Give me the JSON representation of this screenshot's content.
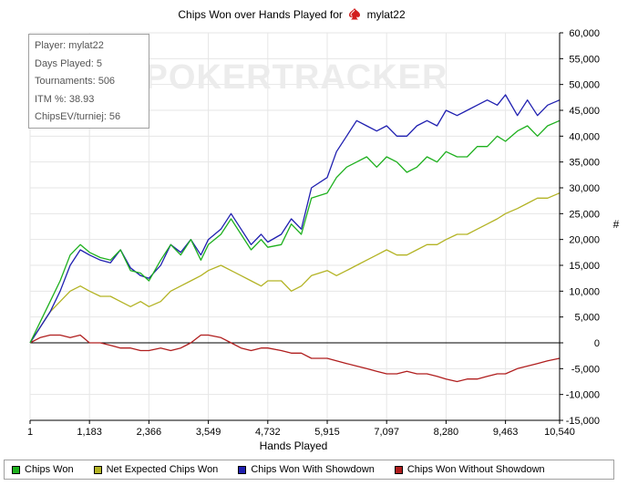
{
  "chart_data": {
    "type": "line",
    "title": "Chips Won over Hands Played for",
    "player_name": "mylat22",
    "xlabel": "Hands Played",
    "ylabel": "#",
    "xlim": [
      1,
      10540
    ],
    "ylim": [
      -15000,
      60000
    ],
    "x_ticks": [
      "1",
      "1,183",
      "2,366",
      "3,549",
      "4,732",
      "5,915",
      "7,097",
      "8,280",
      "9,463",
      "10,540"
    ],
    "y_ticks": [
      "60,000",
      "55,000",
      "50,000",
      "45,000",
      "40,000",
      "35,000",
      "30,000",
      "25,000",
      "20,000",
      "15,000",
      "10,000",
      "5,000",
      "0",
      "-5,000",
      "-10,000",
      "-15,000"
    ],
    "watermark": "POKERTRACKER",
    "grid": true,
    "legend_position": "bottom",
    "info_box": [
      "Player: mylat22",
      "Days Played: 5",
      "Tournaments: 506",
      "ITM %: 38.93",
      "ChipsEV/turniej: 56"
    ],
    "series": [
      {
        "name": "Chips Won",
        "color": "#1eb01e",
        "x": [
          1,
          200,
          400,
          600,
          800,
          1000,
          1183,
          1400,
          1600,
          1800,
          2000,
          2200,
          2366,
          2600,
          2800,
          3000,
          3200,
          3400,
          3549,
          3800,
          4000,
          4200,
          4400,
          4600,
          4732,
          5000,
          5200,
          5400,
          5600,
          5915,
          6100,
          6300,
          6500,
          6700,
          6900,
          7097,
          7300,
          7500,
          7700,
          7900,
          8100,
          8280,
          8500,
          8700,
          8900,
          9100,
          9300,
          9463,
          9700,
          9900,
          10100,
          10300,
          10540
        ],
        "values": [
          0,
          4000,
          8000,
          12000,
          17000,
          19000,
          17500,
          16500,
          16000,
          18000,
          14000,
          13500,
          12000,
          16000,
          19000,
          17000,
          20000,
          16000,
          19000,
          21000,
          24000,
          21000,
          18000,
          20000,
          18500,
          19000,
          23000,
          21000,
          28000,
          29000,
          32000,
          34000,
          35000,
          36000,
          34000,
          36000,
          35000,
          33000,
          34000,
          36000,
          35000,
          37000,
          36000,
          36000,
          38000,
          38000,
          40000,
          39000,
          41000,
          42000,
          40000,
          42000,
          43000
        ]
      },
      {
        "name": "Net Expected Chips Won",
        "color": "#b3b324",
        "x": [
          1,
          200,
          400,
          600,
          800,
          1000,
          1183,
          1400,
          1600,
          1800,
          2000,
          2200,
          2366,
          2600,
          2800,
          3000,
          3200,
          3400,
          3549,
          3800,
          4000,
          4200,
          4400,
          4600,
          4732,
          5000,
          5200,
          5400,
          5600,
          5915,
          6100,
          6300,
          6500,
          6700,
          6900,
          7097,
          7300,
          7500,
          7700,
          7900,
          8100,
          8280,
          8500,
          8700,
          8900,
          9100,
          9300,
          9463,
          9700,
          9900,
          10100,
          10300,
          10540
        ],
        "values": [
          0,
          3000,
          6000,
          8000,
          10000,
          11000,
          10000,
          9000,
          9000,
          8000,
          7000,
          8000,
          7000,
          8000,
          10000,
          11000,
          12000,
          13000,
          14000,
          15000,
          14000,
          13000,
          12000,
          11000,
          12000,
          12000,
          10000,
          11000,
          13000,
          14000,
          13000,
          14000,
          15000,
          16000,
          17000,
          18000,
          17000,
          17000,
          18000,
          19000,
          19000,
          20000,
          21000,
          21000,
          22000,
          23000,
          24000,
          25000,
          26000,
          27000,
          28000,
          28000,
          29000
        ]
      },
      {
        "name": "Chips Won With Showdown",
        "color": "#1f1fb0",
        "x": [
          1,
          200,
          400,
          600,
          800,
          1000,
          1183,
          1400,
          1600,
          1800,
          2000,
          2200,
          2366,
          2600,
          2800,
          3000,
          3200,
          3400,
          3549,
          3800,
          4000,
          4200,
          4400,
          4600,
          4732,
          5000,
          5200,
          5400,
          5600,
          5915,
          6100,
          6300,
          6500,
          6700,
          6900,
          7097,
          7300,
          7500,
          7700,
          7900,
          8100,
          8280,
          8500,
          8700,
          8900,
          9100,
          9300,
          9463,
          9700,
          9900,
          10100,
          10300,
          10540
        ],
        "values": [
          0,
          3000,
          6000,
          10000,
          15000,
          18000,
          17000,
          16000,
          15500,
          18000,
          14500,
          13000,
          12500,
          15000,
          19000,
          17500,
          20000,
          17000,
          20000,
          22000,
          25000,
          22000,
          19000,
          21000,
          19500,
          21000,
          24000,
          22000,
          30000,
          32000,
          37000,
          40000,
          43000,
          42000,
          41000,
          42000,
          40000,
          40000,
          42000,
          43000,
          42000,
          45000,
          44000,
          45000,
          46000,
          47000,
          46000,
          48000,
          44000,
          47000,
          44000,
          46000,
          47000
        ]
      },
      {
        "name": "Chips Won Without Showdown",
        "color": "#b01e1e",
        "x": [
          1,
          200,
          400,
          600,
          800,
          1000,
          1183,
          1400,
          1600,
          1800,
          2000,
          2200,
          2366,
          2600,
          2800,
          3000,
          3200,
          3400,
          3549,
          3800,
          4000,
          4200,
          4400,
          4600,
          4732,
          5000,
          5200,
          5400,
          5600,
          5915,
          6100,
          6300,
          6500,
          6700,
          6900,
          7097,
          7300,
          7500,
          7700,
          7900,
          8100,
          8280,
          8500,
          8700,
          8900,
          9100,
          9300,
          9463,
          9700,
          9900,
          10100,
          10300,
          10540
        ],
        "values": [
          0,
          1000,
          1500,
          1500,
          1000,
          1500,
          0,
          0,
          -500,
          -1000,
          -1000,
          -1500,
          -1500,
          -1000,
          -1500,
          -1000,
          0,
          1500,
          1500,
          1000,
          0,
          -1000,
          -1500,
          -1000,
          -1000,
          -1500,
          -2000,
          -2000,
          -3000,
          -3000,
          -3500,
          -4000,
          -4500,
          -5000,
          -5500,
          -6000,
          -6000,
          -5500,
          -6000,
          -6000,
          -6500,
          -7000,
          -7500,
          -7000,
          -7000,
          -6500,
          -6000,
          -6000,
          -5000,
          -4500,
          -4000,
          -3500,
          -3000
        ]
      }
    ]
  }
}
